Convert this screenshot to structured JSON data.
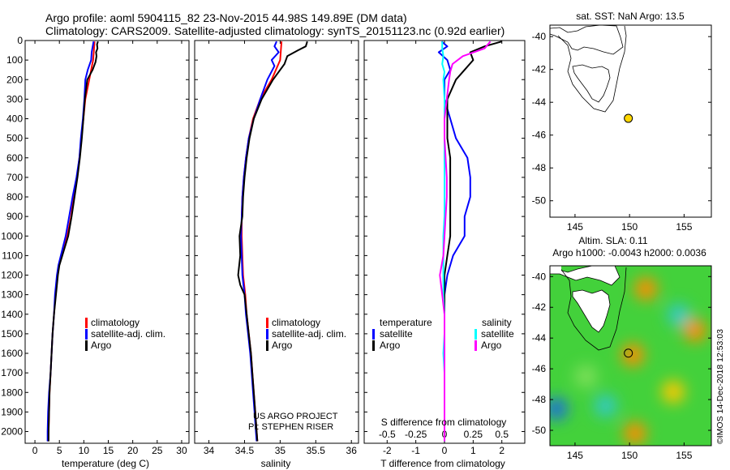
{
  "title_line1": "Argo profile: aoml 5904115_82 23-Nov-2015 44.98S 149.89E (DM data)",
  "title_line2": "Climatology: CARS2009. Satellite-adjusted climatology: synTS_20151123.nc (0.92d earlier)",
  "credit": "©IMOS 14-Dec-2018 12:53:03",
  "colors": {
    "climatology": "#ff0000",
    "satellite": "#0000ff",
    "argo": "#000000",
    "temp_sat": "#00ffff",
    "sal_diff": "#ff00ff"
  },
  "depth_axis": {
    "ylim": [
      0,
      2060
    ],
    "ticks": [
      0,
      100,
      200,
      300,
      400,
      500,
      600,
      700,
      800,
      900,
      1000,
      1100,
      1200,
      1300,
      1400,
      1500,
      1600,
      1700,
      1800,
      1900,
      2000
    ],
    "labels": [
      "0",
      "100",
      "200",
      "300",
      "400",
      "500",
      "600",
      "700",
      "800",
      "900",
      "1000",
      "1100",
      "1200",
      "1300",
      "1400",
      "1500",
      "1600",
      "1700",
      "1800",
      "1900",
      "2000"
    ]
  },
  "chart_data": [
    {
      "type": "line",
      "id": "temperature",
      "xlabel": "temperature (deg C)",
      "xlim": [
        -2,
        31.5
      ],
      "xticks": [
        0,
        5,
        10,
        15,
        20,
        25,
        30
      ],
      "xtick_labels": [
        "0",
        "5",
        "10",
        "15",
        "20",
        "25",
        "30"
      ],
      "legend": [
        "climatology",
        "satellite-adj. clim.",
        "Argo"
      ],
      "series": [
        {
          "name": "climatology",
          "color": "#ff0000",
          "depth": [
            5,
            100,
            200,
            300,
            400,
            500,
            600,
            700,
            800,
            900,
            1000,
            1100,
            1150,
            1200,
            1300,
            1400,
            1500,
            1600,
            1700,
            1800,
            1900,
            2000,
            2050
          ],
          "x": [
            12.2,
            11.9,
            11.1,
            10.3,
            9.9,
            9.5,
            9.1,
            8.6,
            7.9,
            7.4,
            6.6,
            5.5,
            4.9,
            4.6,
            4.2,
            3.9,
            3.6,
            3.4,
            3.2,
            3.0,
            2.9,
            2.8,
            2.7
          ]
        },
        {
          "name": "satellite-adj. clim.",
          "color": "#0000ff",
          "depth": [
            5,
            60,
            100,
            150,
            200,
            300,
            400,
            500,
            600,
            700,
            800,
            900,
            1000,
            1100,
            1150,
            1200,
            1300,
            1400,
            1500,
            1600,
            1700,
            1800,
            1900,
            2000,
            2050
          ],
          "x": [
            12.0,
            11.6,
            11.5,
            10.8,
            10.3,
            10.1,
            9.8,
            9.4,
            9.1,
            8.5,
            7.7,
            7.0,
            6.3,
            5.3,
            4.8,
            4.5,
            4.1,
            3.9,
            3.6,
            3.4,
            3.2,
            2.9,
            2.7,
            2.6,
            2.6
          ]
        },
        {
          "name": "Argo",
          "color": "#000000",
          "depth": [
            5,
            20,
            40,
            60,
            80,
            110,
            150,
            200,
            300,
            400,
            500,
            600,
            700,
            800,
            900,
            1000,
            1100,
            1150,
            1200,
            1300,
            1400,
            1500,
            1600,
            1700,
            1800,
            1900,
            2000,
            2050
          ],
          "x": [
            12.9,
            12.7,
            12.8,
            12.5,
            12.6,
            12.4,
            11.8,
            10.7,
            10.2,
            9.9,
            9.6,
            9.2,
            8.7,
            8.1,
            7.5,
            6.8,
            5.6,
            5.0,
            4.7,
            4.3,
            3.9,
            3.6,
            3.4,
            3.2,
            3.0,
            2.9,
            2.8,
            2.8
          ]
        }
      ]
    },
    {
      "type": "line",
      "id": "salinity",
      "xlabel": "salinity",
      "xlim": [
        33.8,
        36.1
      ],
      "xticks": [
        34,
        34.5,
        35,
        35.5,
        36
      ],
      "xtick_labels": [
        "34",
        "34.5",
        "35",
        "35.5",
        "36"
      ],
      "legend": [
        "climatology",
        "satellite-adj. clim.",
        "Argo"
      ],
      "series": [
        {
          "name": "climatology",
          "color": "#ff0000",
          "depth": [
            5,
            100,
            200,
            300,
            400,
            500,
            600,
            700,
            800,
            900,
            1000,
            1100,
            1200,
            1300,
            1400,
            1500,
            1600,
            1700,
            1800,
            1900,
            2000,
            2050
          ],
          "x": [
            35.02,
            35.0,
            34.88,
            34.72,
            34.62,
            34.56,
            34.52,
            34.49,
            34.47,
            34.46,
            34.46,
            34.47,
            34.48,
            34.51,
            34.53,
            34.56,
            34.59,
            34.61,
            34.63,
            34.65,
            34.67,
            34.68
          ]
        },
        {
          "name": "satellite-adj. clim.",
          "color": "#0000ff",
          "depth": [
            5,
            30,
            60,
            100,
            130,
            200,
            300,
            400,
            500,
            600,
            700,
            800,
            900,
            1000,
            1100,
            1200,
            1300,
            1400,
            1500,
            1600,
            1700,
            1800,
            1900,
            2000,
            2050
          ],
          "x": [
            34.95,
            34.92,
            34.98,
            34.88,
            34.92,
            34.82,
            34.72,
            34.63,
            34.56,
            34.52,
            34.49,
            34.47,
            34.46,
            34.45,
            34.46,
            34.47,
            34.5,
            34.52,
            34.55,
            34.58,
            34.6,
            34.62,
            34.64,
            34.66,
            34.67
          ]
        },
        {
          "name": "Argo",
          "color": "#000000",
          "depth": [
            5,
            30,
            50,
            80,
            120,
            200,
            300,
            400,
            500,
            600,
            700,
            800,
            900,
            1000,
            1100,
            1200,
            1250,
            1300,
            1400,
            1500,
            1600,
            1700,
            1800,
            1900,
            2000,
            2050
          ],
          "x": [
            35.38,
            35.36,
            35.25,
            35.1,
            35.06,
            34.9,
            34.74,
            34.63,
            34.57,
            34.53,
            34.5,
            34.48,
            34.47,
            34.43,
            34.44,
            34.41,
            34.44,
            34.5,
            34.53,
            34.56,
            34.59,
            34.61,
            34.63,
            34.65,
            34.67,
            34.68
          ]
        }
      ]
    },
    {
      "type": "line",
      "id": "difference",
      "xlabel": "T difference from climatology",
      "xlabel_top": "S difference from climatology",
      "xlim": [
        -2.8,
        2.8
      ],
      "xticks": [
        -2,
        -1,
        0,
        1,
        2
      ],
      "xtick_labels": [
        "-2",
        "-1",
        "0",
        "1",
        "2"
      ],
      "xlim_top": [
        -0.7,
        0.7
      ],
      "xticks_top": [
        -0.5,
        -0.25,
        0,
        0.25,
        0.5
      ],
      "xtick_labels_top": [
        "-0.5",
        "-0.25",
        "0",
        "0.25",
        "0.5"
      ],
      "legend_left_title": "temperature",
      "legend_right_title": "salinity",
      "legend_left": [
        "satellite",
        "Argo"
      ],
      "legend_right": [
        "satellite",
        "Argo"
      ],
      "series": [
        {
          "name": "temperature satellite",
          "color": "#0000ff",
          "depth": [
            5,
            30,
            60,
            100,
            150,
            200,
            300,
            400,
            500,
            600,
            700,
            800,
            900,
            1000,
            1100,
            1200,
            1300,
            1400,
            1500,
            1600,
            1700,
            1800,
            1900,
            2000,
            2050
          ],
          "x": [
            -0.1,
            0.1,
            -0.2,
            0.1,
            0.2,
            0.0,
            0.0,
            0.2,
            0.4,
            0.8,
            0.9,
            0.9,
            0.7,
            0.7,
            0.3,
            0.1,
            0.0,
            0.0,
            0.0,
            0.0,
            0.0,
            0.0,
            0.0,
            0.0,
            0.0
          ]
        },
        {
          "name": "temperature Argo",
          "color": "#000000",
          "depth": [
            5,
            30,
            60,
            100,
            150,
            200,
            300,
            400,
            500,
            600,
            700,
            800,
            900,
            1000,
            1100,
            1200,
            1300,
            1400,
            1500,
            1600,
            1700,
            1800,
            1900,
            2000,
            2050
          ],
          "x": [
            2.0,
            1.4,
            0.9,
            1.0,
            0.7,
            0.4,
            0.1,
            0.1,
            0.1,
            0.2,
            0.2,
            0.2,
            0.2,
            0.2,
            0.1,
            0.0,
            0.0,
            0.0,
            0.0,
            0.0,
            0.0,
            0.0,
            0.0,
            0.0,
            0.0
          ]
        },
        {
          "name": "salinity satellite",
          "color": "#00ffff",
          "depth": [
            5,
            40,
            80,
            120,
            160,
            200,
            300,
            400,
            500,
            600,
            700,
            800,
            900,
            1000,
            1100,
            1200,
            1300,
            1400,
            1500,
            1600,
            1700,
            1800,
            1900,
            2000,
            2050
          ],
          "x": [
            -0.02,
            -0.02,
            -0.01,
            -0.02,
            0.0,
            -0.01,
            0.0,
            0.0,
            0.0,
            0.0,
            0.0,
            0.0,
            0.0,
            -0.01,
            -0.01,
            -0.01,
            -0.01,
            0.0,
            0.0,
            -0.01,
            0.0,
            0.0,
            0.0,
            0.0,
            0.0
          ]
        },
        {
          "name": "salinity Argo",
          "color": "#ff00ff",
          "depth": [
            5,
            40,
            80,
            120,
            160,
            200,
            300,
            400,
            500,
            600,
            700,
            800,
            900,
            1000,
            1100,
            1200,
            1300,
            1400,
            1500,
            1600,
            1700,
            1800,
            1900,
            2000,
            2050
          ],
          "x": [
            0.4,
            0.35,
            0.16,
            0.07,
            0.05,
            0.04,
            0.02,
            0.0,
            0.0,
            0.01,
            0.02,
            0.02,
            0.01,
            0.0,
            -0.01,
            -0.04,
            -0.02,
            0.0,
            0.0,
            0.0,
            0.0,
            0.0,
            0.0,
            0.0,
            0.0
          ]
        }
      ]
    },
    {
      "type": "scatter",
      "id": "sst-map",
      "title": "sat. SST: NaN Argo: 13.5",
      "xlim": [
        142.7,
        157.5
      ],
      "ylim": [
        -51,
        -39.3
      ],
      "xticks": [
        145,
        150,
        155
      ],
      "xtick_labels": [
        "145",
        "150",
        "155"
      ],
      "yticks": [
        -40,
        -42,
        -44,
        -46,
        -48,
        -50
      ],
      "ytick_labels": [
        "-40",
        "-42",
        "-44",
        "-46",
        "-48",
        "-50"
      ],
      "points": [
        {
          "name": "profile",
          "lon": 149.89,
          "lat": -44.98,
          "color": "#ffd700"
        }
      ]
    },
    {
      "type": "heatmap",
      "id": "sla-map",
      "title": "Altim. SLA: 0.11",
      "subtitle": "Argo h1000: -0.0043 h2000: 0.0036",
      "xlim": [
        142.7,
        157.5
      ],
      "ylim": [
        -51,
        -39.3
      ],
      "xticks": [
        145,
        150,
        155
      ],
      "xtick_labels": [
        "145",
        "150",
        "155"
      ],
      "yticks": [
        -40,
        -42,
        -44,
        -46,
        -48,
        -50
      ],
      "ytick_labels": [
        "-40",
        "-42",
        "-44",
        "-46",
        "-48",
        "-50"
      ],
      "points": [
        {
          "name": "profile",
          "lon": 149.89,
          "lat": -44.98,
          "color": "#88ff00"
        }
      ],
      "anomalies": [
        {
          "lon": 151.5,
          "lat": -40.8,
          "value": 0.25
        },
        {
          "lon": 156,
          "lat": -43.5,
          "value": 0.22
        },
        {
          "lon": 150.3,
          "lat": -45.1,
          "value": 0.24
        },
        {
          "lon": 150.5,
          "lat": -50.2,
          "value": 0.23
        },
        {
          "lon": 154,
          "lat": -47.5,
          "value": 0.15
        },
        {
          "lon": 143.3,
          "lat": -48.6,
          "value": -0.25
        },
        {
          "lon": 147.8,
          "lat": -48.4,
          "value": -0.12
        },
        {
          "lon": 154.5,
          "lat": -42.5,
          "value": -0.15
        },
        {
          "lon": 146,
          "lat": -46.5,
          "value": -0.08
        }
      ]
    }
  ],
  "footnote_line1": "US ARGO PROJECT",
  "footnote_line2": "PI: STEPHEN RISER"
}
